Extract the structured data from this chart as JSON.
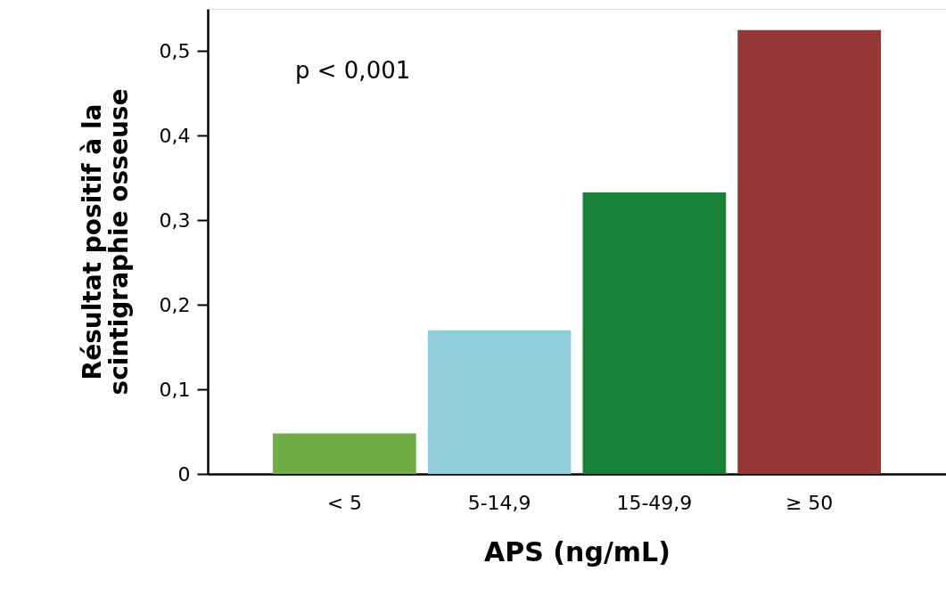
{
  "chart_data": {
    "type": "bar",
    "xlabel": "APS (ng/mL)",
    "ylabel": "Résultat positif à la\nscintigraphie osseuse",
    "categories": [
      "< 5",
      "5-14,9",
      "15-49,9",
      "≥ 50"
    ],
    "values": [
      0.048,
      0.17,
      0.333,
      0.525
    ],
    "colors": [
      "#70ad47",
      "#92cddc",
      "#178237",
      "#953735"
    ],
    "ylim": [
      0,
      0.55
    ],
    "yticks": [
      0,
      {
        "value": 0.1,
        "label": "0,1"
      },
      {
        "value": 0.2,
        "label": "0,2"
      },
      {
        "value": 0.3,
        "label": "0,3"
      },
      {
        "value": 0.4,
        "label": "0,4"
      },
      {
        "value": 0.5,
        "label": "0,5"
      }
    ],
    "grid": false,
    "annotations": [
      "p < 0,001"
    ]
  }
}
